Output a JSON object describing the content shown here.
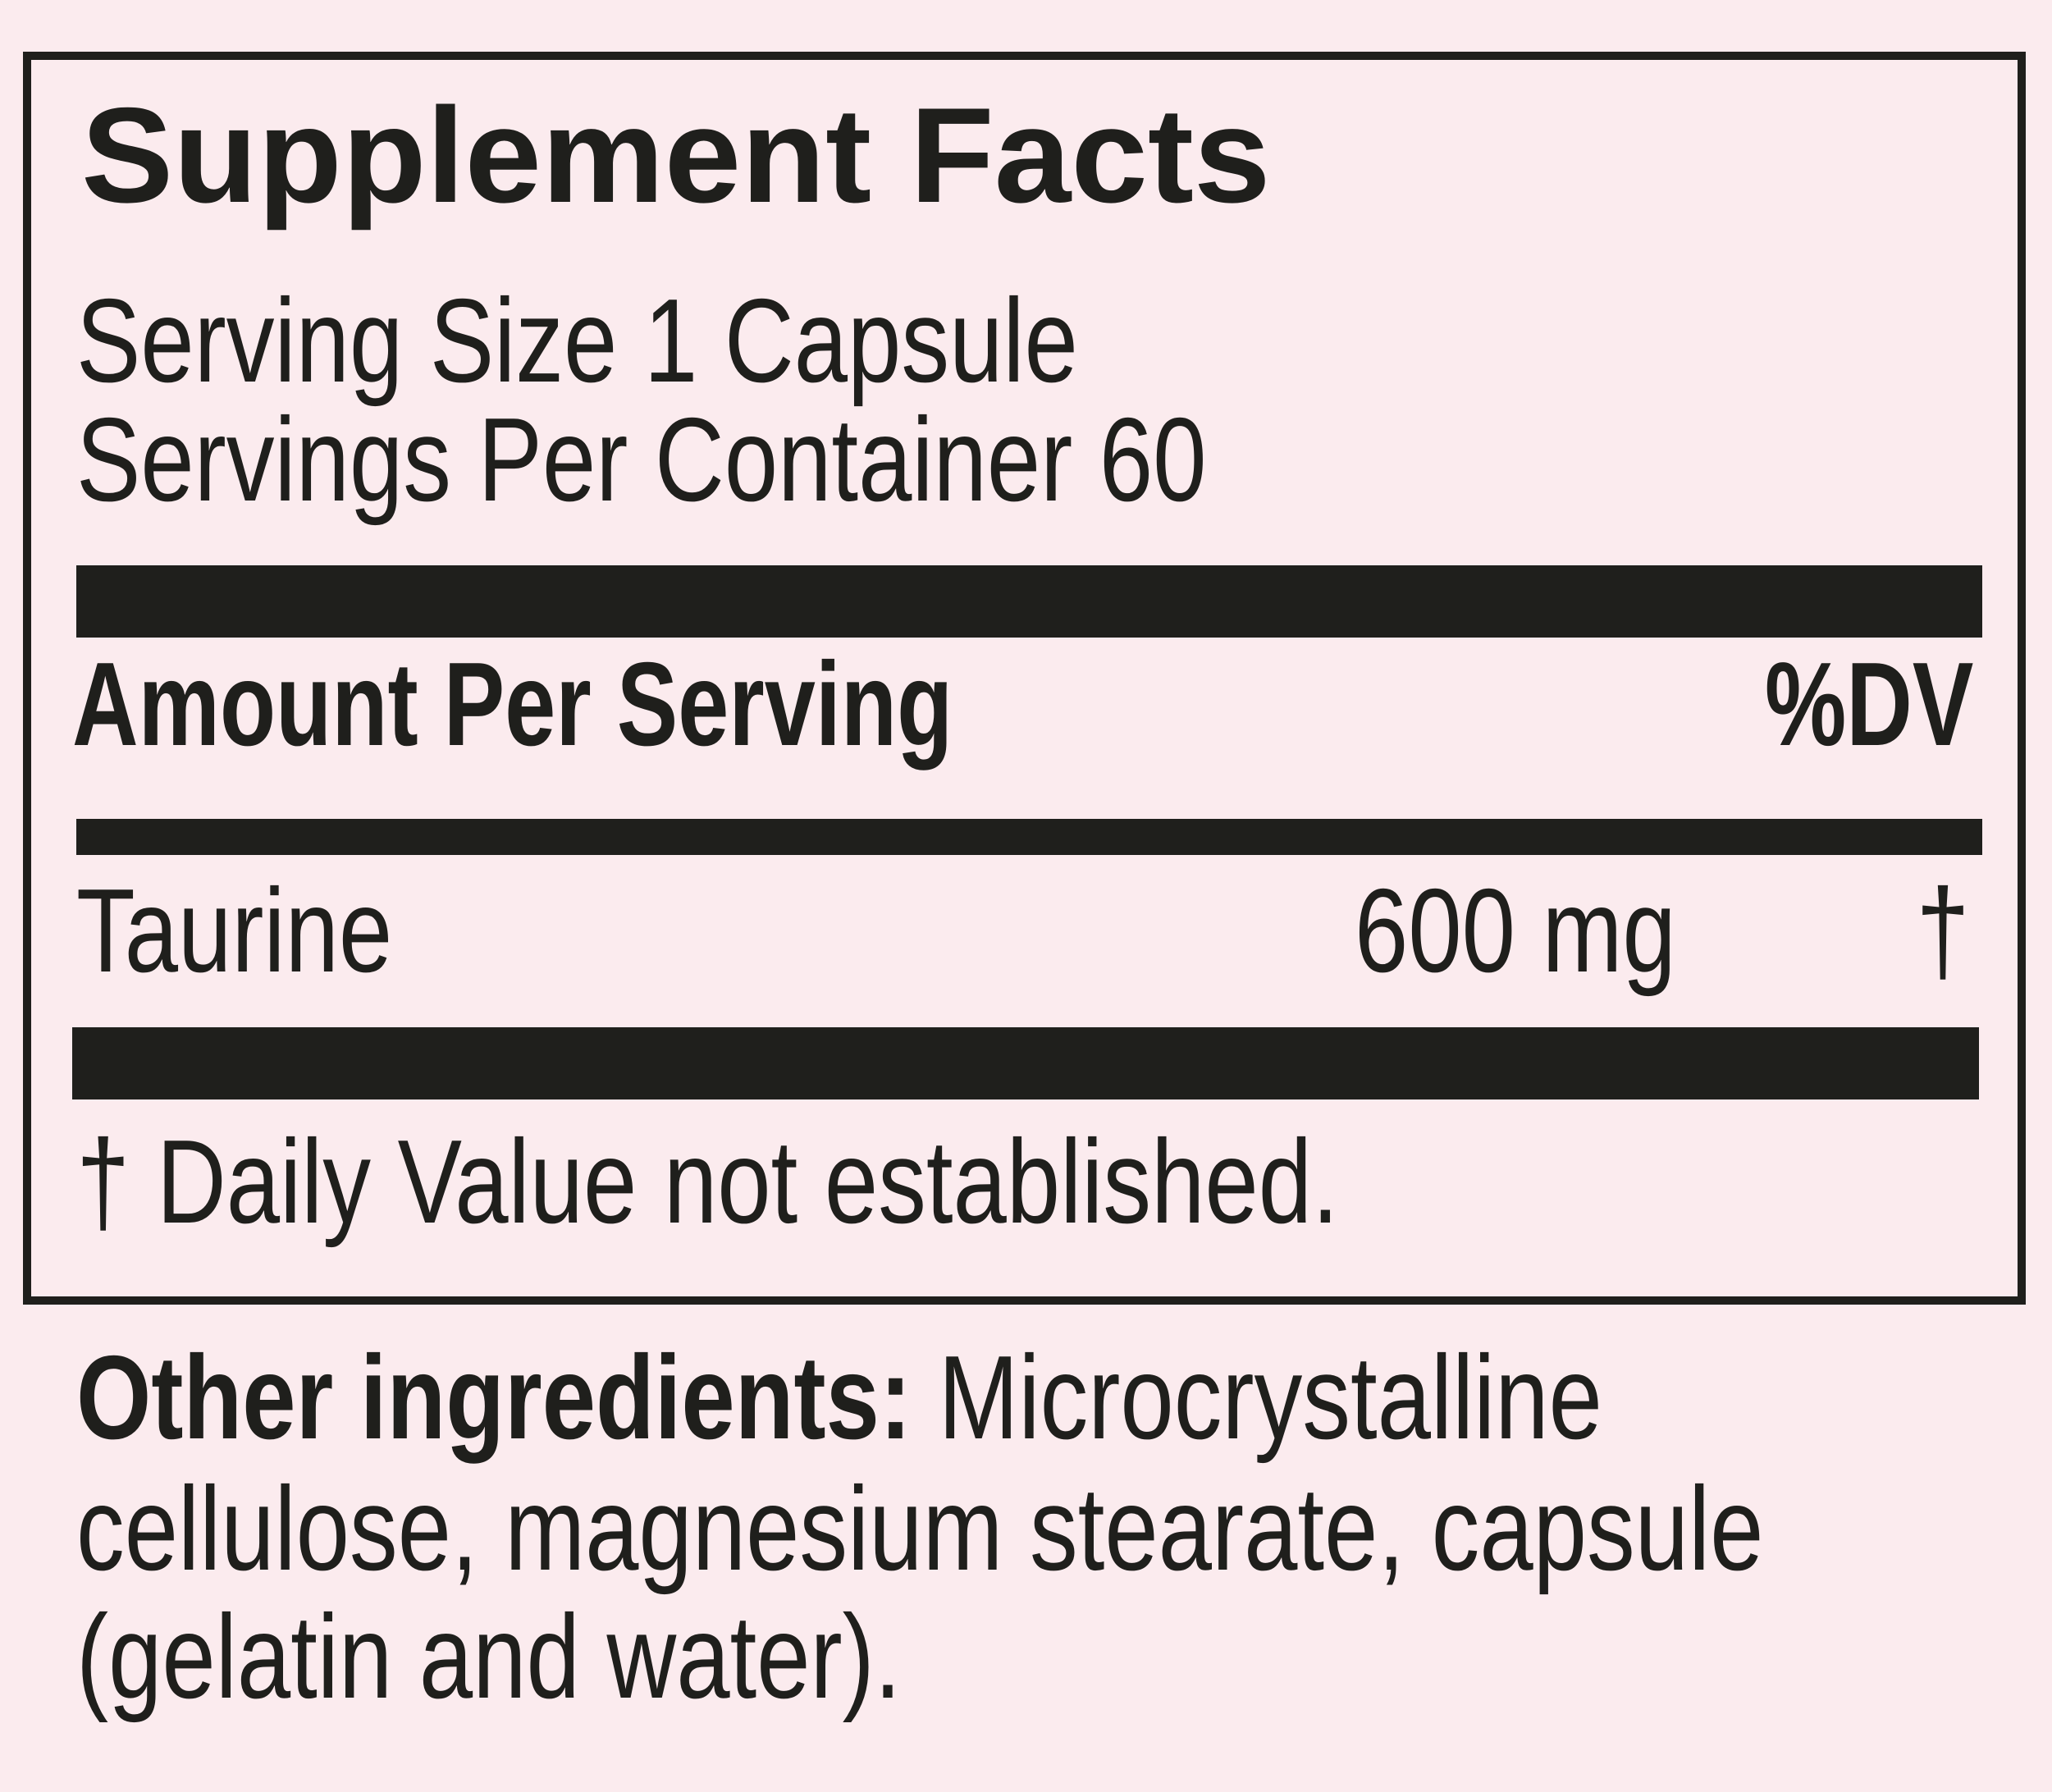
{
  "title": "Supplement Facts",
  "serving_size": "Serving Size 1 Capsule",
  "servings_per_container": "Servings Per Container 60",
  "header": {
    "amount_label": "Amount Per Serving",
    "dv_label": "%DV"
  },
  "nutrients": [
    {
      "name": "Taurine",
      "amount": "600 mg",
      "dv": "†"
    }
  ],
  "footnote": "† Daily Value not established.",
  "other_ingredients": {
    "label": "Other ingredients:",
    "line1": "Microcrystalline",
    "line2": "cellulose, magnesium stearate, capsule",
    "line3": "(gelatin and water)."
  },
  "colors": {
    "background": "#fbebee",
    "ink": "#1f1f1c"
  }
}
